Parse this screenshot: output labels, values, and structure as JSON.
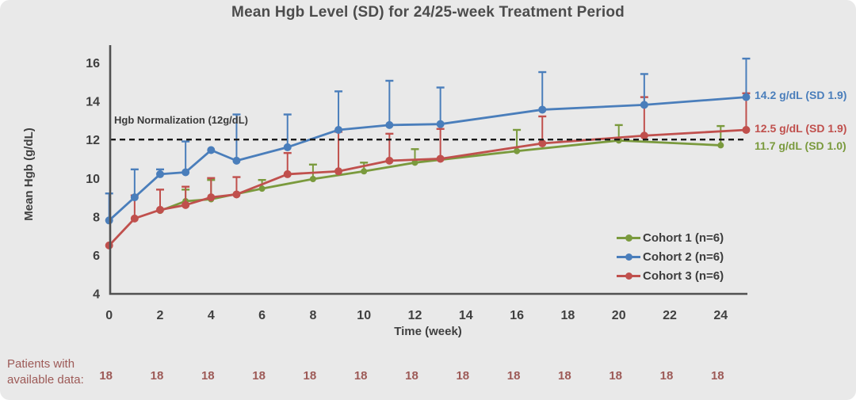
{
  "title": "Mean Hgb Level (SD) for 24/25-week Treatment Period",
  "chart_data": {
    "type": "line",
    "title": "Mean Hgb Level (SD) for 24/25-week Treatment Period",
    "xlabel": "Time (week)",
    "ylabel": "Mean Hgb (g/dL)",
    "xlim": [
      0,
      25
    ],
    "ylim": [
      4,
      17
    ],
    "x_ticks": [
      0,
      2,
      4,
      6,
      8,
      10,
      12,
      14,
      16,
      18,
      20,
      22,
      24
    ],
    "y_ticks": [
      4,
      6,
      8,
      10,
      12,
      14,
      16
    ],
    "grid": false,
    "legend_position": "lower right",
    "error_bars": "upper, +1 SD",
    "reference_line": {
      "y": 12,
      "label": "Hgb Normalization (12g/dL)",
      "style": "dashed",
      "color": "#1a1a1a"
    },
    "series": [
      {
        "name": "Cohort 1 (n=6)",
        "color": "#7a9a3d",
        "marker_radius": 4,
        "x": [
          2,
          3,
          4,
          6,
          8,
          10,
          12,
          16,
          20,
          24
        ],
        "y": [
          8.3,
          8.8,
          8.9,
          9.45,
          9.95,
          10.35,
          10.8,
          11.4,
          11.95,
          11.7
        ],
        "upper": [
          null,
          9.4,
          9.9,
          9.9,
          10.7,
          10.8,
          11.5,
          12.5,
          12.75,
          12.7
        ]
      },
      {
        "name": "Cohort 3 (n=6)",
        "color": "#c0504d",
        "marker_radius": 5,
        "x": [
          0,
          1,
          2,
          3,
          4,
          5,
          7,
          9,
          11,
          13,
          17,
          21,
          25
        ],
        "y": [
          6.5,
          7.9,
          8.35,
          8.6,
          9.0,
          9.15,
          10.2,
          10.35,
          10.9,
          11.0,
          11.8,
          12.2,
          12.5
        ],
        "upper": [
          null,
          9.1,
          9.4,
          9.55,
          10.0,
          10.05,
          11.3,
          12.4,
          12.3,
          12.55,
          13.2,
          14.2,
          14.4
        ]
      },
      {
        "name": "Cohort 2 (n=6)",
        "color": "#4a7ebb",
        "marker_radius": 5,
        "x": [
          0,
          1,
          2,
          3,
          4,
          5,
          7,
          9,
          11,
          13,
          17,
          21,
          25
        ],
        "y": [
          7.8,
          9.0,
          10.2,
          10.3,
          11.45,
          10.9,
          11.6,
          12.5,
          12.75,
          12.8,
          13.55,
          13.8,
          14.2
        ],
        "upper": [
          9.2,
          10.45,
          10.45,
          11.9,
          null,
          13.3,
          13.3,
          14.5,
          15.05,
          14.7,
          15.5,
          15.4,
          16.2
        ]
      }
    ],
    "end_labels": [
      {
        "text": "14.2 g/dL (SD 1.9)",
        "color": "#4a7ebb"
      },
      {
        "text": "12.5 g/dL (SD 1.9)",
        "color": "#c0504d"
      },
      {
        "text": "11.7 g/dL (SD 1.0)",
        "color": "#7a9a3d"
      }
    ]
  },
  "legend": {
    "items": [
      {
        "label": "Cohort 1 (n=6)",
        "color": "#7a9a3d"
      },
      {
        "label": "Cohort 2 (n=6)",
        "color": "#4a7ebb"
      },
      {
        "label": "Cohort 3 (n=6)",
        "color": "#c0504d"
      }
    ]
  },
  "footer": {
    "label_line1": "Patients with",
    "label_line2": "available data:",
    "weeks": [
      0,
      2,
      4,
      6,
      8,
      10,
      12,
      14,
      16,
      18,
      20,
      22,
      24
    ],
    "counts": [
      "18",
      "18",
      "18",
      "18",
      "18",
      "18",
      "18",
      "18",
      "18",
      "18",
      "18",
      "18",
      "18"
    ]
  }
}
